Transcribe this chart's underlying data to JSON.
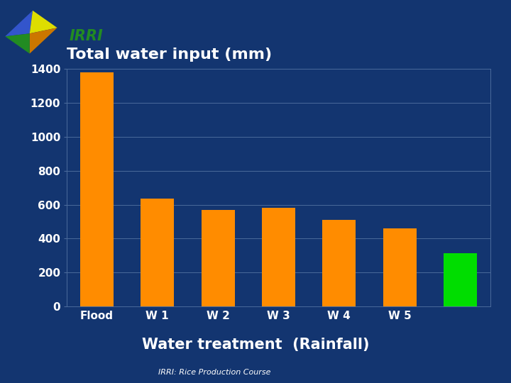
{
  "title": "Total water input (mm)",
  "categories": [
    "Flood",
    "W1",
    "W2",
    "W3",
    "W4",
    "W5",
    ""
  ],
  "xtick_labels": [
    "Flood",
    "W 1",
    "W 2",
    "W 3",
    "W 4",
    "W 5",
    ""
  ],
  "values": [
    1380,
    635,
    570,
    580,
    510,
    460,
    315
  ],
  "bar_colors": [
    "#FF8C00",
    "#FF8C00",
    "#FF8C00",
    "#FF8C00",
    "#FF8C00",
    "#FF8C00",
    "#00DD00"
  ],
  "xlabel_main": "Water treatment",
  "xlabel_extra": "  (Rainfall)",
  "footer": "IRRI: Rice Production Course",
  "background_color": "#133570",
  "text_color": "#ffffff",
  "grid_color": "#4a6a9b",
  "ylim": [
    0,
    1400
  ],
  "yticks": [
    0,
    200,
    400,
    600,
    800,
    1000,
    1200,
    1400
  ],
  "title_fontsize": 16,
  "xlabel_fontsize": 15,
  "tick_fontsize": 11,
  "footer_fontsize": 8,
  "irri_color": "#228B22"
}
